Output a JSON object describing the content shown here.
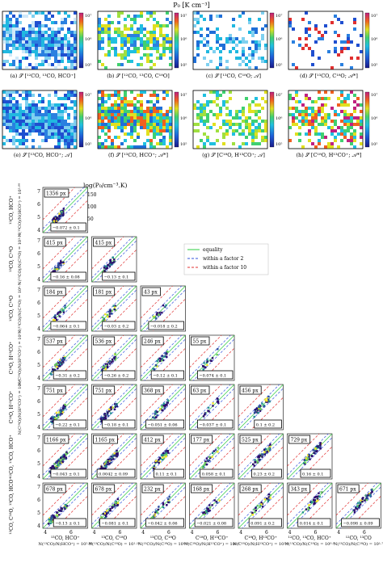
{
  "figure": {
    "top_title": "P₀ [K cm⁻³]",
    "captions": [
      "(a) 𝒮 [¹²CO, ¹³CO, HCO⁺]",
      "(b) 𝒮 [¹²CO, ¹³CO, C¹⁸O]",
      "(c) 𝒮 [¹³CO, C¹⁸O; 𝒜]",
      "(d) 𝒮 [¹³CO, C¹⁸O; 𝒜*]",
      "(e) 𝒮 [¹³CO, HCO⁺; 𝒜]",
      "(f) 𝒮 [¹³CO, HCO⁺; 𝒜*]",
      "(g) 𝒮 [C¹⁸O, H¹³CO⁺; 𝒜]",
      "(h) 𝒮 [C¹⁸O, H¹³CO⁺; 𝒜*]"
    ],
    "colorbar_ticks": [
      "10⁷",
      "10⁶",
      "10⁵"
    ],
    "grid_title": "log(P₀/cm⁻³.K)",
    "grid_colorbar_ticks": [
      "150",
      "100",
      "50"
    ],
    "legend": [
      "equality",
      "within a factor 2",
      "within a factor 10"
    ],
    "axis_ticks_x": [
      "4",
      "6"
    ],
    "axis_ticks_y": [
      "4",
      "5",
      "6",
      "7"
    ],
    "row_labels": [
      "¹²CO, HCO⁺",
      "¹³CO, C¹⁸O",
      "¹³CO, C¹⁸O",
      "C¹⁸O, H¹³CO⁺",
      "C¹⁸O, H¹³CO⁺",
      "¹²CO, ¹³CO, HCO⁺",
      "¹²CO, C¹⁸O, ¹³CO, HCO⁺"
    ],
    "row_sublabels": [
      "N(¹³CO)/N(HCO⁺) = 10²·⁸⁸",
      "N(¹³CO)/N(C¹⁸O) = 10¹·¹⁸",
      "N(¹³CO)/N(C¹⁸O) = 10⁰·⁹",
      "N(C¹⁸O)/N(H¹³CO⁺) = 10¹·²",
      "N(C¹⁸O)/N(H¹³CO⁺) = 10¹·⁶",
      "",
      ""
    ],
    "col_labels": [
      "¹³CO, HCO⁺",
      "¹³CO, C¹⁸O",
      "¹³CO, C¹⁸O",
      "C¹⁸O, H¹³CO⁺",
      "C¹⁸O, H¹³CO⁺",
      "¹²CO, ¹³CO, HCO⁺",
      "¹²CO, ¹³CO"
    ],
    "col_sublabels": [
      "N(¹³CO)/N(HCO⁺) = 10²·⁸⁸",
      "N(¹³CO)/N(C¹⁸O) = 10¹·¹⁸",
      "N(¹³CO)/N(C¹⁸O) = 10⁰·⁹",
      "N(C¹⁸O)/N(H¹³CO⁺) = 10¹·²",
      "N(C¹⁸O)/N(H¹³CO⁺) = 10¹·⁶",
      "N(¹³CO)/N(C¹⁸O) = 10⁰·⁹",
      "N(¹³CO)/N(C¹⁸O) = 10¹·⁷"
    ],
    "panels": [
      {
        "r": 0,
        "c": 0,
        "px": "1356 px",
        "val": "−0.072 ± 0.1"
      },
      {
        "r": 1,
        "c": 0,
        "px": "415 px",
        "val": "−0.16 ± 0.08"
      },
      {
        "r": 1,
        "c": 1,
        "px": "415 px",
        "val": "−0.13 ± 0.1"
      },
      {
        "r": 2,
        "c": 0,
        "px": "184 px",
        "val": "−0.064 ± 0.1"
      },
      {
        "r": 2,
        "c": 1,
        "px": "181 px",
        "val": "−0.03 ± 0.2"
      },
      {
        "r": 2,
        "c": 2,
        "px": "43 px",
        "val": "−0.018 ± 0.2"
      },
      {
        "r": 3,
        "c": 0,
        "px": "537 px",
        "val": "−0.31 ± 0.2"
      },
      {
        "r": 3,
        "c": 1,
        "px": "536 px",
        "val": "−0.26 ± 0.2"
      },
      {
        "r": 3,
        "c": 2,
        "px": "246 px",
        "val": "−0.12 ± 0.1"
      },
      {
        "r": 3,
        "c": 3,
        "px": "55 px",
        "val": "−0.074 ± 0.1"
      },
      {
        "r": 4,
        "c": 0,
        "px": "751 px",
        "val": "−0.22 ± 0.1"
      },
      {
        "r": 4,
        "c": 1,
        "px": "751 px",
        "val": "−0.18 ± 0.1"
      },
      {
        "r": 4,
        "c": 2,
        "px": "368 px",
        "val": "−0.051 ± 0.06"
      },
      {
        "r": 4,
        "c": 3,
        "px": "63 px",
        "val": "−0.037 ± 0.1"
      },
      {
        "r": 4,
        "c": 4,
        "px": "456 px",
        "val": "0.1 ± 0.2"
      },
      {
        "r": 5,
        "c": 0,
        "px": "1166 px",
        "val": "−0.043 ± 0.1"
      },
      {
        "r": 5,
        "c": 1,
        "px": "1165 px",
        "val": "0.0042 ± 0.09"
      },
      {
        "r": 5,
        "c": 2,
        "px": "412 px",
        "val": "0.11 ± 0.1"
      },
      {
        "r": 5,
        "c": 3,
        "px": "177 px",
        "val": "0.058 ± 0.1"
      },
      {
        "r": 5,
        "c": 4,
        "px": "525 px",
        "val": "0.23 ± 0.2"
      },
      {
        "r": 5,
        "c": 5,
        "px": "729 px",
        "val": "0.16 ± 0.1"
      },
      {
        "r": 6,
        "c": 0,
        "px": "678 px",
        "val": "−0.13 ± 0.1"
      },
      {
        "r": 6,
        "c": 1,
        "px": "678 px",
        "val": "−0.081 ± 0.1"
      },
      {
        "r": 6,
        "c": 2,
        "px": "232 px",
        "val": "−0.042 ± 0.06"
      },
      {
        "r": 6,
        "c": 3,
        "px": "168 px",
        "val": "−0.021 ± 0.08"
      },
      {
        "r": 6,
        "c": 4,
        "px": "268 px",
        "val": "0.091 ± 0.2"
      },
      {
        "r": 6,
        "c": 5,
        "px": "343 px",
        "val": "0.014 ± 0.1"
      },
      {
        "r": 6,
        "c": 6,
        "px": "671 px",
        "val": "−0.098 ± 0.09"
      }
    ],
    "colors": {
      "equality": "#2ecc40",
      "factor2": "#3355dd",
      "factor10": "#e03030"
    }
  }
}
